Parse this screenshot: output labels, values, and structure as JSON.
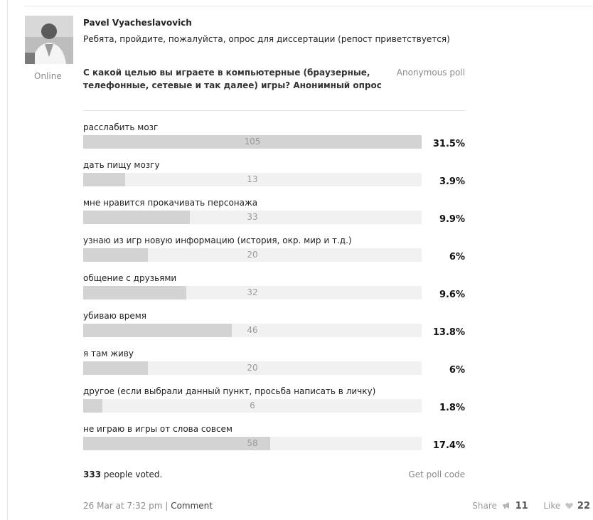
{
  "post": {
    "author": "Pavel Vyacheslavovich",
    "status": "Online",
    "text": "Ребята, пройдите, пожалуйста, опрос для диссертации (репост приветствуется)"
  },
  "poll": {
    "question": "С какой целью вы играете в компьютерные (браузерные, телефонные, сетевые и так далее) игры? Анонимный опрос",
    "type": "Anonymous poll",
    "options": [
      {
        "label": "расслабить мозг",
        "count": "105",
        "percent": "31.5%"
      },
      {
        "label": "дать пищу мозгу",
        "count": "13",
        "percent": "3.9%"
      },
      {
        "label": "мне нравится прокачивать персонажа",
        "count": "33",
        "percent": "9.9%"
      },
      {
        "label": "узнаю из игр новую информацию (история, окр. мир и т.д.)",
        "count": "20",
        "percent": "6%"
      },
      {
        "label": "общение с друзьями",
        "count": "32",
        "percent": "9.6%"
      },
      {
        "label": "убиваю время",
        "count": "46",
        "percent": "13.8%"
      },
      {
        "label": "я там живу",
        "count": "20",
        "percent": "6%"
      },
      {
        "label": "другое (если выбрали данный пункт, просьба написать в личку)",
        "count": "6",
        "percent": "1.8%"
      },
      {
        "label": "не играю в игры от слова совсем",
        "count": "58",
        "percent": "17.4%"
      }
    ],
    "votes_count": "333",
    "votes_text": "people voted.",
    "get_code": "Get poll code"
  },
  "footer": {
    "date": "26 Mar at 7:32 pm",
    "separator": "|",
    "comment": "Comment",
    "share_label": "Share",
    "share_count": "11",
    "like_label": "Like",
    "like_count": "22"
  },
  "icons": {
    "share": "megaphone-icon",
    "like": "heart-icon"
  }
}
